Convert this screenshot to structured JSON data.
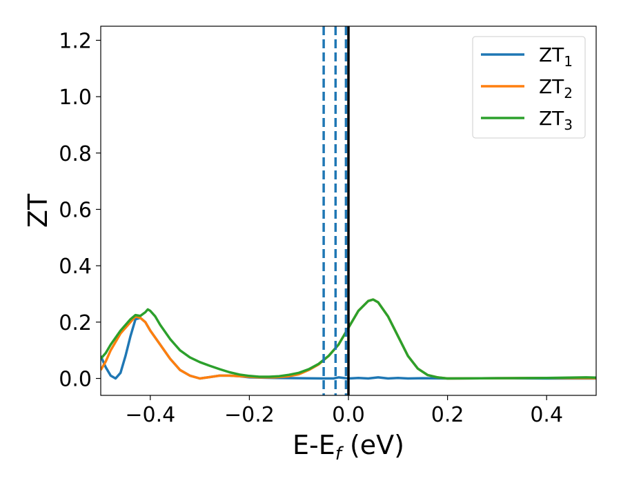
{
  "chart_data": {
    "type": "line",
    "title": "",
    "xlabel": {
      "main": "E-E",
      "sub": "f",
      "unit": " (eV)"
    },
    "ylabel": "ZT",
    "xlim": [
      -0.5,
      0.5
    ],
    "ylim": [
      -0.06,
      1.25
    ],
    "xticks": [
      -0.4,
      -0.2,
      0.0,
      0.2,
      0.4
    ],
    "xtick_labels": [
      "−0.4",
      "−0.2",
      "0.0",
      "0.2",
      "0.4"
    ],
    "yticks": [
      0.0,
      0.2,
      0.4,
      0.6,
      0.8,
      1.0,
      1.2
    ],
    "ytick_labels": [
      "0.0",
      "0.2",
      "0.4",
      "0.6",
      "0.8",
      "1.0",
      "1.2"
    ],
    "grid": false,
    "legend_position": "top-right",
    "vlines": [
      {
        "x": -0.05,
        "style": "dashed",
        "color": "#1f77b4"
      },
      {
        "x": -0.026,
        "style": "dashed",
        "color": "#1f77b4"
      },
      {
        "x": -0.005,
        "style": "dashed",
        "color": "#1f77b4"
      },
      {
        "x": 0.0,
        "style": "solid",
        "color": "#000000"
      }
    ],
    "series": [
      {
        "name": "ZT",
        "sub": "1",
        "color": "#1f77b4",
        "points": [
          [
            -0.5,
            0.08
          ],
          [
            -0.49,
            0.04
          ],
          [
            -0.48,
            0.01
          ],
          [
            -0.47,
            0.0
          ],
          [
            -0.46,
            0.02
          ],
          [
            -0.45,
            0.08
          ],
          [
            -0.44,
            0.15
          ],
          [
            -0.43,
            0.21
          ],
          [
            -0.42,
            0.215
          ],
          [
            -0.41,
            0.2
          ],
          [
            -0.4,
            0.17
          ],
          [
            -0.38,
            0.12
          ],
          [
            -0.36,
            0.07
          ],
          [
            -0.34,
            0.03
          ],
          [
            -0.32,
            0.01
          ],
          [
            -0.3,
            0.0
          ],
          [
            -0.28,
            0.005
          ],
          [
            -0.26,
            0.01
          ],
          [
            -0.24,
            0.01
          ],
          [
            -0.22,
            0.008
          ],
          [
            -0.2,
            0.004
          ],
          [
            -0.15,
            0.002
          ],
          [
            -0.1,
            0.001
          ],
          [
            -0.05,
            0.0
          ],
          [
            -0.03,
            0.0
          ],
          [
            -0.02,
            0.004
          ],
          [
            -0.01,
            0.002
          ],
          [
            0.0,
            0.0
          ],
          [
            0.02,
            0.002
          ],
          [
            0.04,
            0.0
          ],
          [
            0.06,
            0.004
          ],
          [
            0.08,
            0.0
          ],
          [
            0.1,
            0.002
          ],
          [
            0.12,
            0.0
          ],
          [
            0.15,
            0.001
          ],
          [
            0.2,
            0.0
          ],
          [
            0.3,
            0.001
          ],
          [
            0.4,
            0.0
          ],
          [
            0.5,
            0.0
          ]
        ]
      },
      {
        "name": "ZT",
        "sub": "2",
        "color": "#ff7f0e",
        "points": [
          [
            -0.5,
            0.03
          ],
          [
            -0.49,
            0.06
          ],
          [
            -0.48,
            0.1
          ],
          [
            -0.46,
            0.16
          ],
          [
            -0.44,
            0.2
          ],
          [
            -0.43,
            0.22
          ],
          [
            -0.42,
            0.215
          ],
          [
            -0.41,
            0.2
          ],
          [
            -0.4,
            0.17
          ],
          [
            -0.38,
            0.12
          ],
          [
            -0.36,
            0.07
          ],
          [
            -0.34,
            0.03
          ],
          [
            -0.32,
            0.01
          ],
          [
            -0.3,
            0.0
          ],
          [
            -0.28,
            0.005
          ],
          [
            -0.26,
            0.01
          ],
          [
            -0.24,
            0.01
          ],
          [
            -0.22,
            0.008
          ],
          [
            -0.2,
            0.006
          ],
          [
            -0.18,
            0.004
          ],
          [
            -0.15,
            0.004
          ],
          [
            -0.12,
            0.008
          ],
          [
            -0.1,
            0.015
          ],
          [
            -0.08,
            0.03
          ],
          [
            -0.06,
            0.05
          ],
          [
            -0.04,
            0.08
          ],
          [
            -0.02,
            0.12
          ],
          [
            0.0,
            0.18
          ],
          [
            0.02,
            0.24
          ],
          [
            0.04,
            0.275
          ],
          [
            0.05,
            0.28
          ],
          [
            0.06,
            0.27
          ],
          [
            0.08,
            0.22
          ],
          [
            0.1,
            0.15
          ],
          [
            0.12,
            0.08
          ],
          [
            0.14,
            0.035
          ],
          [
            0.16,
            0.012
          ],
          [
            0.18,
            0.004
          ],
          [
            0.2,
            0.0
          ],
          [
            0.3,
            0.001
          ],
          [
            0.4,
            0.002
          ],
          [
            0.5,
            0.001
          ]
        ]
      },
      {
        "name": "ZT",
        "sub": "3",
        "color": "#2ca02c",
        "points": [
          [
            -0.5,
            0.07
          ],
          [
            -0.49,
            0.09
          ],
          [
            -0.48,
            0.12
          ],
          [
            -0.46,
            0.17
          ],
          [
            -0.44,
            0.21
          ],
          [
            -0.43,
            0.225
          ],
          [
            -0.42,
            0.222
          ],
          [
            -0.41,
            0.235
          ],
          [
            -0.405,
            0.245
          ],
          [
            -0.4,
            0.24
          ],
          [
            -0.39,
            0.22
          ],
          [
            -0.38,
            0.19
          ],
          [
            -0.36,
            0.14
          ],
          [
            -0.34,
            0.1
          ],
          [
            -0.32,
            0.075
          ],
          [
            -0.3,
            0.058
          ],
          [
            -0.28,
            0.045
          ],
          [
            -0.26,
            0.033
          ],
          [
            -0.24,
            0.022
          ],
          [
            -0.22,
            0.014
          ],
          [
            -0.2,
            0.009
          ],
          [
            -0.18,
            0.006
          ],
          [
            -0.16,
            0.006
          ],
          [
            -0.14,
            0.008
          ],
          [
            -0.12,
            0.013
          ],
          [
            -0.1,
            0.02
          ],
          [
            -0.08,
            0.033
          ],
          [
            -0.06,
            0.052
          ],
          [
            -0.04,
            0.08
          ],
          [
            -0.02,
            0.12
          ],
          [
            0.0,
            0.18
          ],
          [
            0.02,
            0.24
          ],
          [
            0.04,
            0.275
          ],
          [
            0.05,
            0.28
          ],
          [
            0.06,
            0.27
          ],
          [
            0.08,
            0.22
          ],
          [
            0.1,
            0.15
          ],
          [
            0.12,
            0.08
          ],
          [
            0.14,
            0.035
          ],
          [
            0.16,
            0.012
          ],
          [
            0.18,
            0.004
          ],
          [
            0.2,
            0.0
          ],
          [
            0.3,
            0.001
          ],
          [
            0.4,
            0.002
          ],
          [
            0.48,
            0.004
          ],
          [
            0.5,
            0.003
          ]
        ]
      }
    ]
  }
}
